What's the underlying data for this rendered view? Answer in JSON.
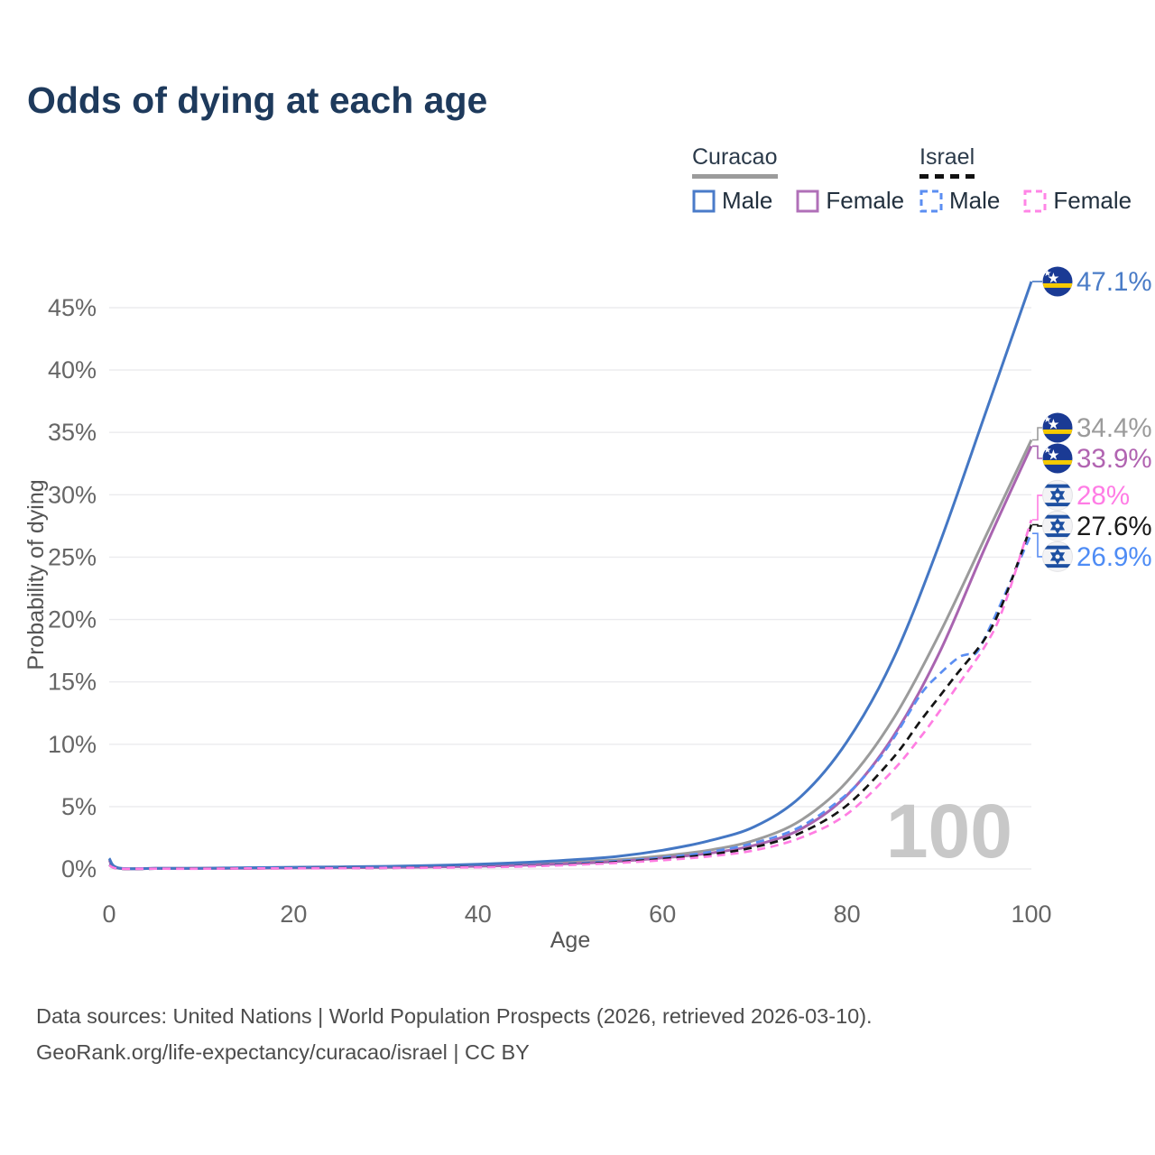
{
  "title": "Odds of dying at each age",
  "legend": {
    "groups": [
      {
        "label": "Curacao",
        "line_style": "solid",
        "items": [
          {
            "label": "Male",
            "color": "#4a7bc9",
            "dash": false
          },
          {
            "label": "Female",
            "color": "#b070b8",
            "dash": false
          }
        ]
      },
      {
        "label": "Israel",
        "line_style": "dashed",
        "items": [
          {
            "label": "Male",
            "color": "#5b8ef2",
            "dash": true
          },
          {
            "label": "Female",
            "color": "#ff85e6",
            "dash": true
          }
        ]
      }
    ]
  },
  "watermark": "100",
  "footer": {
    "line1": "Data sources: United Nations | World Population Prospects (2026, retrieved 2026-03-10).",
    "line2": "GeoRank.org/life-expectancy/curacao/israel | CC BY"
  },
  "chart_data": {
    "type": "line",
    "title": "Odds of dying at each age",
    "xlabel": "Age",
    "ylabel": "Probability of dying",
    "xlim": [
      0,
      100
    ],
    "ylim": [
      0,
      47.5
    ],
    "x_ticks": [
      0,
      20,
      40,
      60,
      80,
      100
    ],
    "y_ticks": [
      0,
      5,
      10,
      15,
      20,
      25,
      30,
      35,
      40,
      45
    ],
    "y_tick_suffix": "%",
    "grid": "horizontal-only",
    "legend_position": "top-right",
    "series": [
      {
        "name": "Curacao Both sexes",
        "color": "#9b9b9b",
        "label_color": "#9b9b9b",
        "dash": false,
        "flag": "curacao-flag-icon",
        "end_label": "34.4%",
        "end_value": 34.4,
        "points": [
          [
            0,
            0.75
          ],
          [
            1,
            0.07
          ],
          [
            5,
            0.04
          ],
          [
            10,
            0.05
          ],
          [
            15,
            0.08
          ],
          [
            20,
            0.11
          ],
          [
            25,
            0.13
          ],
          [
            30,
            0.16
          ],
          [
            35,
            0.21
          ],
          [
            40,
            0.29
          ],
          [
            45,
            0.39
          ],
          [
            50,
            0.53
          ],
          [
            55,
            0.72
          ],
          [
            60,
            1.05
          ],
          [
            65,
            1.5
          ],
          [
            70,
            2.3
          ],
          [
            75,
            3.9
          ],
          [
            80,
            7.0
          ],
          [
            85,
            12.0
          ],
          [
            90,
            18.8
          ],
          [
            95,
            26.6
          ],
          [
            100,
            34.4
          ]
        ]
      },
      {
        "name": "Curacao Female",
        "color": "#a964b0",
        "label_color": "#b164b1",
        "dash": false,
        "flag": "curacao-flag-icon",
        "end_label": "33.9%",
        "end_value": 33.9,
        "points": [
          [
            0,
            0.68
          ],
          [
            1,
            0.06
          ],
          [
            5,
            0.04
          ],
          [
            10,
            0.04
          ],
          [
            15,
            0.06
          ],
          [
            20,
            0.08
          ],
          [
            25,
            0.1
          ],
          [
            30,
            0.12
          ],
          [
            35,
            0.16
          ],
          [
            40,
            0.22
          ],
          [
            45,
            0.3
          ],
          [
            50,
            0.43
          ],
          [
            55,
            0.6
          ],
          [
            60,
            0.88
          ],
          [
            65,
            1.25
          ],
          [
            70,
            1.9
          ],
          [
            75,
            3.2
          ],
          [
            80,
            5.9
          ],
          [
            85,
            10.6
          ],
          [
            90,
            17.3
          ],
          [
            95,
            25.8
          ],
          [
            100,
            33.9
          ]
        ]
      },
      {
        "name": "Curacao Male",
        "color": "#4477c4",
        "label_color": "#4a7cc7",
        "dash": false,
        "flag": "curacao-flag-icon",
        "end_label": "47.1%",
        "end_value": 47.1,
        "points": [
          [
            0,
            0.85
          ],
          [
            1,
            0.08
          ],
          [
            5,
            0.05
          ],
          [
            10,
            0.06
          ],
          [
            15,
            0.1
          ],
          [
            20,
            0.14
          ],
          [
            25,
            0.17
          ],
          [
            30,
            0.21
          ],
          [
            35,
            0.28
          ],
          [
            40,
            0.38
          ],
          [
            45,
            0.52
          ],
          [
            50,
            0.72
          ],
          [
            55,
            1.0
          ],
          [
            60,
            1.5
          ],
          [
            65,
            2.25
          ],
          [
            70,
            3.4
          ],
          [
            75,
            5.8
          ],
          [
            80,
            10.2
          ],
          [
            85,
            16.8
          ],
          [
            90,
            26.0
          ],
          [
            95,
            36.5
          ],
          [
            100,
            47.1
          ]
        ]
      },
      {
        "name": "Israel Male",
        "color": "#5b8ef2",
        "label_color": "#4e8cf5",
        "dash": true,
        "flag": "israel-flag-icon",
        "end_label": "26.9%",
        "end_value": 26.9,
        "points": [
          [
            0,
            0.35
          ],
          [
            1,
            0.04
          ],
          [
            5,
            0.02
          ],
          [
            10,
            0.03
          ],
          [
            15,
            0.05
          ],
          [
            20,
            0.07
          ],
          [
            25,
            0.08
          ],
          [
            30,
            0.1
          ],
          [
            35,
            0.13
          ],
          [
            40,
            0.18
          ],
          [
            45,
            0.27
          ],
          [
            50,
            0.42
          ],
          [
            55,
            0.62
          ],
          [
            60,
            0.92
          ],
          [
            65,
            1.35
          ],
          [
            70,
            2.1
          ],
          [
            75,
            3.4
          ],
          [
            80,
            6.0
          ],
          [
            83,
            8.4
          ],
          [
            85,
            10.4
          ],
          [
            88,
            14.0
          ],
          [
            90,
            15.6
          ],
          [
            92,
            16.9
          ],
          [
            93,
            17.2
          ],
          [
            94,
            17.3
          ],
          [
            95,
            18.6
          ],
          [
            97,
            21.8
          ],
          [
            100,
            26.9
          ]
        ]
      },
      {
        "name": "Israel Both sexes",
        "color": "#141414",
        "label_color": "#1a1a1a",
        "dash": true,
        "flag": "israel-flag-icon",
        "end_label": "27.6%",
        "end_value": 27.6,
        "points": [
          [
            0,
            0.32
          ],
          [
            1,
            0.03
          ],
          [
            5,
            0.02
          ],
          [
            10,
            0.03
          ],
          [
            15,
            0.04
          ],
          [
            20,
            0.06
          ],
          [
            25,
            0.07
          ],
          [
            30,
            0.09
          ],
          [
            35,
            0.12
          ],
          [
            40,
            0.16
          ],
          [
            45,
            0.23
          ],
          [
            50,
            0.36
          ],
          [
            55,
            0.54
          ],
          [
            60,
            0.8
          ],
          [
            65,
            1.15
          ],
          [
            70,
            1.75
          ],
          [
            75,
            2.9
          ],
          [
            80,
            5.1
          ],
          [
            85,
            8.9
          ],
          [
            88,
            11.9
          ],
          [
            90,
            13.8
          ],
          [
            92,
            15.7
          ],
          [
            95,
            18.5
          ],
          [
            97,
            21.5
          ],
          [
            100,
            27.6
          ]
        ]
      },
      {
        "name": "Israel Female",
        "color": "#ff7de2",
        "label_color": "#ff7ce5",
        "dash": true,
        "flag": "israel-flag-icon",
        "end_label": "28%",
        "end_value": 28.0,
        "points": [
          [
            0,
            0.3
          ],
          [
            1,
            0.03
          ],
          [
            5,
            0.02
          ],
          [
            10,
            0.02
          ],
          [
            15,
            0.04
          ],
          [
            20,
            0.05
          ],
          [
            25,
            0.06
          ],
          [
            30,
            0.08
          ],
          [
            35,
            0.1
          ],
          [
            40,
            0.14
          ],
          [
            45,
            0.2
          ],
          [
            50,
            0.32
          ],
          [
            55,
            0.48
          ],
          [
            60,
            0.7
          ],
          [
            65,
            1.0
          ],
          [
            70,
            1.5
          ],
          [
            75,
            2.5
          ],
          [
            80,
            4.4
          ],
          [
            85,
            7.9
          ],
          [
            88,
            10.6
          ],
          [
            90,
            12.6
          ],
          [
            92,
            14.7
          ],
          [
            95,
            17.9
          ],
          [
            97,
            21.0
          ],
          [
            100,
            28.0
          ]
        ]
      }
    ],
    "colors": {
      "grid": "#ebebee",
      "tick_text": "#666666",
      "axis_title_text": "#555555",
      "watermark": "#c8c8c8",
      "title_text": "#1e3a5c"
    }
  }
}
